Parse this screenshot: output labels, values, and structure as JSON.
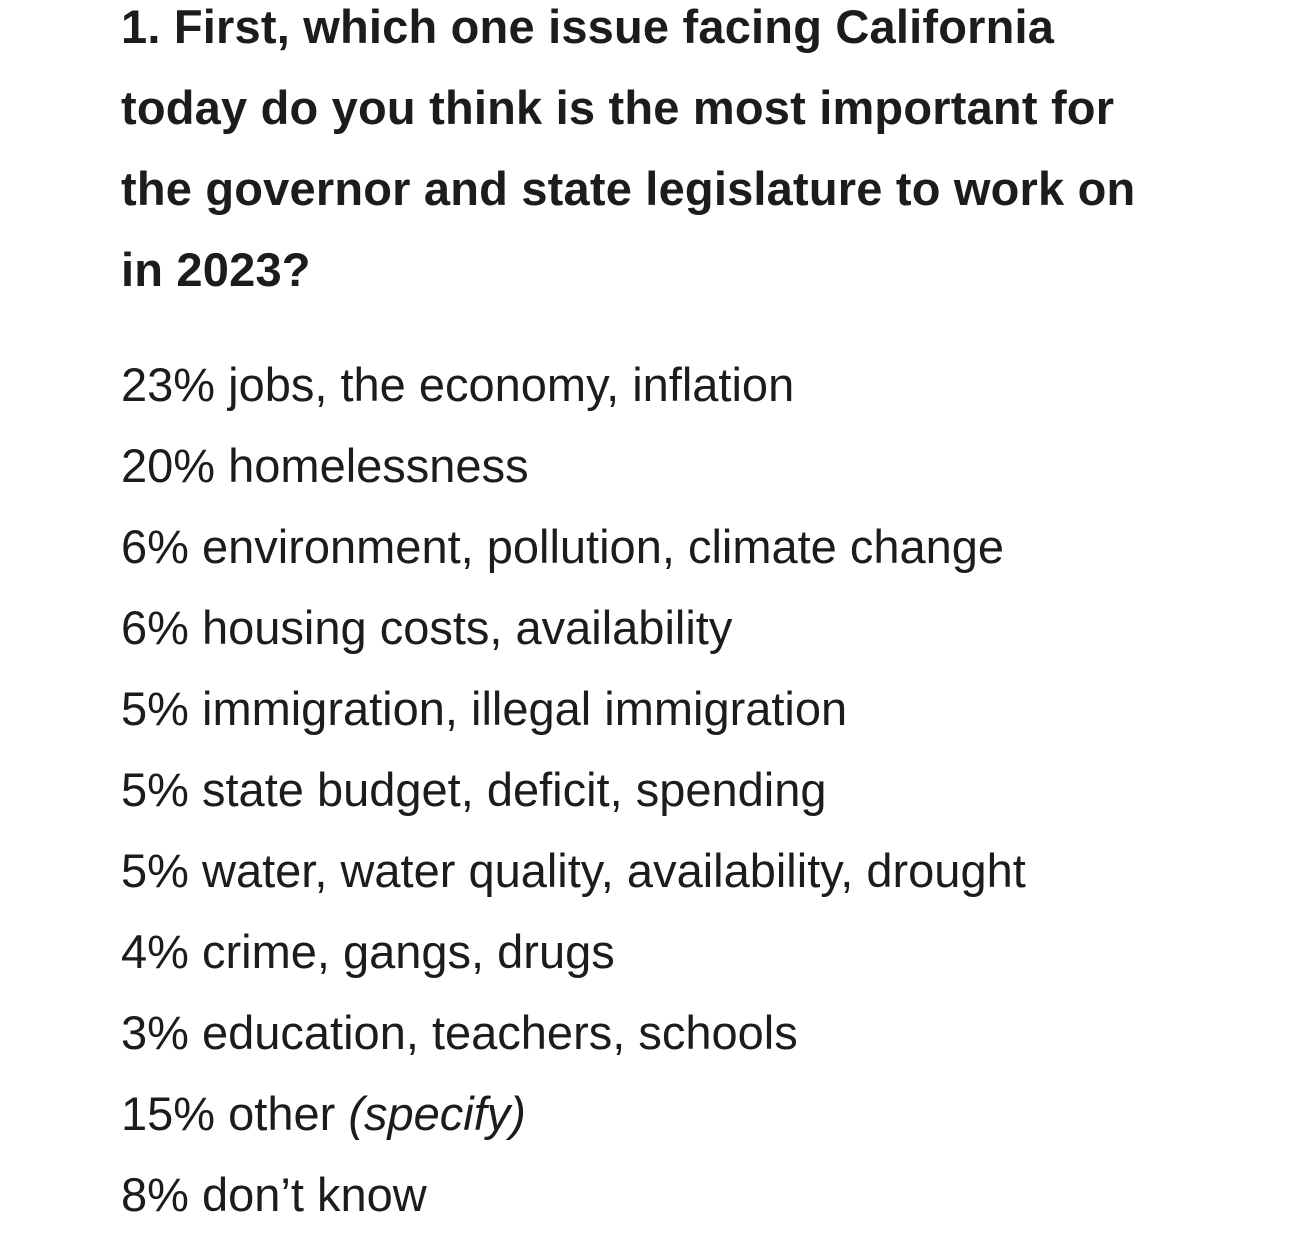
{
  "question": {
    "text": "1. First, which one issue facing California today do you think is the most important for the governor and state legislature to work on in 2023?"
  },
  "answers": [
    {
      "percent": "23%",
      "label": "jobs, the economy, inflation",
      "note": ""
    },
    {
      "percent": "20%",
      "label": "homelessness",
      "note": ""
    },
    {
      "percent": "6%",
      "label": "environment, pollution, climate change",
      "note": ""
    },
    {
      "percent": "6%",
      "label": "housing costs, availability",
      "note": ""
    },
    {
      "percent": "5%",
      "label": "immigration, illegal immigration",
      "note": ""
    },
    {
      "percent": "5%",
      "label": "state budget, deficit, spending",
      "note": ""
    },
    {
      "percent": "5%",
      "label": "water, water quality, availability, drought",
      "note": ""
    },
    {
      "percent": "4%",
      "label": "crime, gangs, drugs",
      "note": ""
    },
    {
      "percent": "3%",
      "label": "education, teachers, schools",
      "note": ""
    },
    {
      "percent": "15%",
      "label": "other",
      "note": "(specify)"
    },
    {
      "percent": "8%",
      "label": "don’t know",
      "note": ""
    }
  ]
}
